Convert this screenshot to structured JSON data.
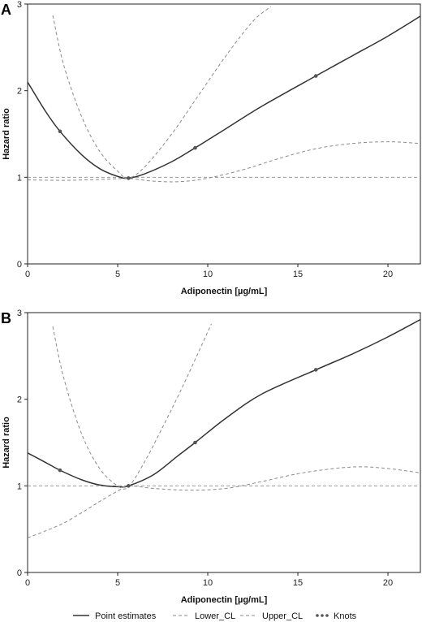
{
  "legend": {
    "point": "Point estimates",
    "lower": "Lower_CL",
    "upper": "Upper_CL",
    "knots": "Knots"
  },
  "colors": {
    "point": "#333333",
    "ci": "#8a8a8a",
    "ref": "#999999",
    "knot": "#555555"
  },
  "chart_data": [
    {
      "panel": "A",
      "type": "line",
      "xlabel": "Adiponectin [µg/mL]",
      "ylabel": "Hazard ratio",
      "xlim": [
        0,
        21.8
      ],
      "ylim": [
        0,
        3
      ],
      "xticks": [
        0,
        5,
        10,
        15,
        20
      ],
      "yticks": [
        0,
        1,
        2,
        3
      ],
      "reference_line": 1,
      "series": [
        {
          "name": "Point estimates",
          "style": "solid",
          "x": [
            0,
            1,
            1.8,
            3,
            4,
            5,
            5.6,
            6.5,
            8,
            9.3,
            11,
            13,
            16,
            18,
            20,
            21.8
          ],
          "y": [
            2.1,
            1.76,
            1.53,
            1.26,
            1.1,
            1.01,
            0.99,
            1.04,
            1.18,
            1.34,
            1.56,
            1.82,
            2.17,
            2.4,
            2.63,
            2.86
          ]
        },
        {
          "name": "Lower_CL",
          "style": "dashed",
          "x": [
            0,
            2,
            4,
            5.6,
            7,
            8.5,
            10,
            12,
            14,
            16,
            18,
            20,
            21.8
          ],
          "y": [
            0.97,
            0.965,
            0.975,
            0.985,
            0.955,
            0.95,
            0.99,
            1.09,
            1.22,
            1.33,
            1.39,
            1.41,
            1.39
          ]
        },
        {
          "name": "Upper_CL",
          "style": "dashed",
          "x": [
            1.4,
            2,
            3,
            4,
            5,
            5.6,
            6.5,
            8,
            9.5,
            11,
            12.5,
            13.5
          ],
          "y": [
            2.87,
            2.3,
            1.7,
            1.3,
            1.07,
            0.99,
            1.12,
            1.5,
            1.95,
            2.4,
            2.8,
            2.97
          ]
        }
      ],
      "knots": {
        "x": [
          1.8,
          5.6,
          9.3,
          16
        ],
        "y": [
          1.53,
          0.99,
          1.34,
          2.17
        ]
      }
    },
    {
      "panel": "B",
      "type": "line",
      "xlabel": "Adiponectin [µg/mL]",
      "ylabel": "Hazard ratio",
      "xlim": [
        0,
        21.8
      ],
      "ylim": [
        0,
        3
      ],
      "xticks": [
        0,
        5,
        10,
        15,
        20
      ],
      "yticks": [
        0,
        1,
        2,
        3
      ],
      "reference_line": 1,
      "series": [
        {
          "name": "Point estimates",
          "style": "solid",
          "x": [
            0,
            1,
            1.8,
            3,
            4,
            5,
            5.6,
            7,
            8.3,
            9.3,
            11,
            13,
            16,
            18,
            20,
            21.8
          ],
          "y": [
            1.38,
            1.27,
            1.18,
            1.07,
            1.01,
            0.99,
            1.0,
            1.13,
            1.34,
            1.5,
            1.78,
            2.06,
            2.34,
            2.52,
            2.72,
            2.92
          ]
        },
        {
          "name": "Lower_CL",
          "style": "dashed",
          "x": [
            0,
            1,
            2,
            3,
            4,
            5,
            5.6,
            7,
            9,
            11,
            13,
            15,
            17,
            18.5,
            20,
            21.8
          ],
          "y": [
            0.4,
            0.48,
            0.57,
            0.69,
            0.82,
            0.94,
            1.0,
            0.97,
            0.95,
            0.97,
            1.05,
            1.14,
            1.2,
            1.22,
            1.2,
            1.15
          ]
        },
        {
          "name": "Upper_CL",
          "style": "dashed",
          "x": [
            1.4,
            2,
            3,
            4,
            5,
            5.6,
            6.5,
            7.5,
            8.5,
            9.5,
            10.2
          ],
          "y": [
            2.84,
            2.25,
            1.6,
            1.2,
            1.0,
            0.99,
            1.28,
            1.68,
            2.1,
            2.55,
            2.87
          ]
        }
      ],
      "knots": {
        "x": [
          1.8,
          5.6,
          9.3,
          16
        ],
        "y": [
          1.18,
          1.0,
          1.5,
          2.34
        ]
      }
    }
  ]
}
